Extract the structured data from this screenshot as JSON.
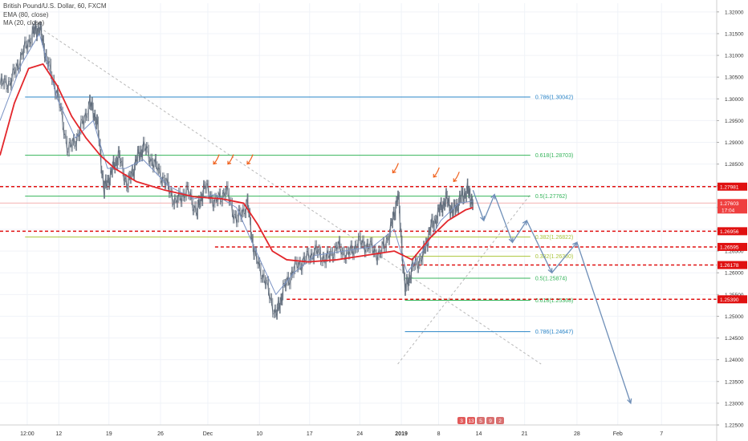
{
  "legend": {
    "symbol": "British Pound/U.S. Dollar, 60, FXCM",
    "ema": "EMA (80, close)",
    "ma": "MA (20, close)"
  },
  "colors": {
    "candle": "#5f6b7a",
    "ema": "#e3262b",
    "ma": "#7b93c4",
    "fib_blue": "#2a84c7",
    "fib_green": "#34b45a",
    "fib_olive": "#a9c43a",
    "level_red": "#e01010",
    "forecast": "#6f8fb8",
    "trendline": "#b8b8b8",
    "annotation_arrow": "#f0611d",
    "price_label_red": "#e01010",
    "current_price_bg": "#ef3f3f"
  },
  "chart_data": {
    "type": "candlestick",
    "instrument": "British Pound/U.S. Dollar",
    "timeframe": "60",
    "source": "FXCM",
    "ylim": [
      1.225,
      1.322
    ],
    "y_ticks": [
      "1.32000",
      "1.31500",
      "1.31000",
      "1.30500",
      "1.30000",
      "1.29500",
      "1.29000",
      "1.28500",
      "1.28000",
      "1.27500",
      "1.27000",
      "1.26500",
      "1.26000",
      "1.25500",
      "1.25000",
      "1.24500",
      "1.24000",
      "1.23500",
      "1.23000",
      "1.22500"
    ],
    "x_ticks": [
      "12:00",
      "12",
      "19",
      "26",
      "Dec",
      "10",
      "17",
      "24",
      "2019",
      "8",
      "14",
      "21",
      "28",
      "Feb",
      "7"
    ],
    "price_path": [
      [
        0.0,
        1.3032
      ],
      [
        0.015,
        1.304
      ],
      [
        0.03,
        1.31
      ],
      [
        0.045,
        1.315
      ],
      [
        0.055,
        1.3165
      ],
      [
        0.065,
        1.309
      ],
      [
        0.08,
        1.301
      ],
      [
        0.095,
        1.288
      ],
      [
        0.11,
        1.292
      ],
      [
        0.125,
        1.299
      ],
      [
        0.135,
        1.295
      ],
      [
        0.145,
        1.279
      ],
      [
        0.155,
        1.283
      ],
      [
        0.165,
        1.287
      ],
      [
        0.178,
        1.28
      ],
      [
        0.19,
        1.286
      ],
      [
        0.2,
        1.289
      ],
      [
        0.215,
        1.285
      ],
      [
        0.23,
        1.281
      ],
      [
        0.245,
        1.276
      ],
      [
        0.26,
        1.279
      ],
      [
        0.275,
        1.274
      ],
      [
        0.285,
        1.28
      ],
      [
        0.3,
        1.276
      ],
      [
        0.315,
        1.279
      ],
      [
        0.33,
        1.272
      ],
      [
        0.345,
        1.276
      ],
      [
        0.355,
        1.264
      ],
      [
        0.37,
        1.258
      ],
      [
        0.385,
        1.25
      ],
      [
        0.395,
        1.256
      ],
      [
        0.41,
        1.261
      ],
      [
        0.425,
        1.263
      ],
      [
        0.44,
        1.265
      ],
      [
        0.455,
        1.263
      ],
      [
        0.47,
        1.266
      ],
      [
        0.485,
        1.264
      ],
      [
        0.5,
        1.267
      ],
      [
        0.515,
        1.266
      ],
      [
        0.53,
        1.264
      ],
      [
        0.545,
        1.27
      ],
      [
        0.555,
        1.278
      ],
      [
        0.565,
        1.256
      ],
      [
        0.575,
        1.261
      ],
      [
        0.59,
        1.264
      ],
      [
        0.6,
        1.27
      ],
      [
        0.612,
        1.274
      ],
      [
        0.622,
        1.277
      ],
      [
        0.632,
        1.274
      ],
      [
        0.642,
        1.277
      ],
      [
        0.652,
        1.279
      ],
      [
        0.66,
        1.276
      ]
    ],
    "ema_80": [
      [
        0.0,
        1.287
      ],
      [
        0.02,
        1.299
      ],
      [
        0.04,
        1.307
      ],
      [
        0.06,
        1.308
      ],
      [
        0.08,
        1.303
      ],
      [
        0.1,
        1.296
      ],
      [
        0.12,
        1.291
      ],
      [
        0.14,
        1.287
      ],
      [
        0.16,
        1.284
      ],
      [
        0.19,
        1.281
      ],
      [
        0.23,
        1.279
      ],
      [
        0.27,
        1.2775
      ],
      [
        0.31,
        1.277
      ],
      [
        0.34,
        1.276
      ],
      [
        0.36,
        1.271
      ],
      [
        0.38,
        1.265
      ],
      [
        0.4,
        1.263
      ],
      [
        0.43,
        1.2625
      ],
      [
        0.47,
        1.263
      ],
      [
        0.51,
        1.264
      ],
      [
        0.55,
        1.265
      ],
      [
        0.575,
        1.263
      ],
      [
        0.6,
        1.268
      ],
      [
        0.625,
        1.272
      ],
      [
        0.65,
        1.2745
      ],
      [
        0.66,
        1.275
      ]
    ],
    "ma_20": [
      [
        0.0,
        1.295
      ],
      [
        0.03,
        1.308
      ],
      [
        0.055,
        1.315
      ],
      [
        0.08,
        1.3
      ],
      [
        0.105,
        1.291
      ],
      [
        0.13,
        1.295
      ],
      [
        0.15,
        1.284
      ],
      [
        0.175,
        1.284
      ],
      [
        0.2,
        1.286
      ],
      [
        0.235,
        1.28
      ],
      [
        0.27,
        1.277
      ],
      [
        0.3,
        1.278
      ],
      [
        0.33,
        1.275
      ],
      [
        0.36,
        1.264
      ],
      [
        0.385,
        1.255
      ],
      [
        0.41,
        1.26
      ],
      [
        0.44,
        1.264
      ],
      [
        0.48,
        1.265
      ],
      [
        0.52,
        1.266
      ],
      [
        0.55,
        1.27
      ],
      [
        0.568,
        1.26
      ],
      [
        0.59,
        1.265
      ],
      [
        0.615,
        1.272
      ],
      [
        0.64,
        1.276
      ],
      [
        0.66,
        1.2765
      ]
    ],
    "horizontal_levels": [
      {
        "price": 1.27981,
        "label": "1.27981",
        "style": "red-dashed",
        "x_start": 0.0
      },
      {
        "price": 1.26956,
        "label": "1.26956",
        "style": "red-dashed",
        "x_start": 0.0
      },
      {
        "price": 1.26595,
        "label": "1.26595",
        "style": "red-dashed",
        "x_start": 0.3
      },
      {
        "price": 1.26178,
        "label": "1.26178",
        "style": "red-dashed",
        "x_start": 0.56
      },
      {
        "price": 1.2539,
        "label": "1.25390",
        "style": "red-dashed",
        "x_start": 0.4
      }
    ],
    "fib_levels": [
      {
        "ratio": "0.786",
        "price": 1.30042,
        "text": "0.786(1.30042)",
        "color": "blue",
        "x_start": 0.035,
        "x_end": 0.74
      },
      {
        "ratio": "0.618",
        "price": 1.28703,
        "text": "0.618(1.28703)",
        "color": "green",
        "x_start": 0.035,
        "x_end": 0.74
      },
      {
        "ratio": "0.5",
        "price": 1.27762,
        "text": "0.5(1.27762)",
        "color": "green",
        "x_start": 0.035,
        "x_end": 0.74
      },
      {
        "ratio": "0.382",
        "price": 1.26822,
        "text": "0.382(1.26822)",
        "color": "olive",
        "x_start": 0.035,
        "x_end": 0.74
      },
      {
        "ratio": "0.382",
        "price": 1.2638,
        "text": "0.382(1.26380)",
        "color": "olive",
        "x_start": 0.565,
        "x_end": 0.74
      },
      {
        "ratio": "0.5",
        "price": 1.25874,
        "text": "0.5(1.25874)",
        "color": "green",
        "x_start": 0.565,
        "x_end": 0.74
      },
      {
        "ratio": "0.618",
        "price": 1.25368,
        "text": "0.618(1.25368)",
        "color": "green",
        "x_start": 0.565,
        "x_end": 0.74
      },
      {
        "ratio": "0.786",
        "price": 1.24647,
        "text": "0.786(1.24647)",
        "color": "blue",
        "x_start": 0.565,
        "x_end": 0.74
      }
    ],
    "current_price": {
      "label": "1.27603",
      "price": 1.27603,
      "countdown": "17:04"
    },
    "trendlines": [
      {
        "from": [
          0.05,
          1.317
        ],
        "to": [
          0.755,
          1.239
        ]
      },
      {
        "from": [
          0.555,
          1.239
        ],
        "to": [
          0.74,
          1.278
        ]
      }
    ],
    "forecast_path": [
      [
        0.66,
        1.279
      ],
      [
        0.675,
        1.272
      ],
      [
        0.69,
        1.278
      ],
      [
        0.715,
        1.267
      ],
      [
        0.735,
        1.272
      ],
      [
        0.77,
        1.26
      ],
      [
        0.805,
        1.267
      ],
      [
        0.88,
        1.23
      ]
    ],
    "annotation_arrows": [
      [
        0.298,
        1.285
      ],
      [
        0.318,
        1.285
      ],
      [
        0.345,
        1.285
      ],
      [
        0.548,
        1.283
      ],
      [
        0.605,
        1.282
      ],
      [
        0.633,
        1.281
      ]
    ],
    "event_markers": [
      "3",
      "13",
      "5",
      "9",
      "2"
    ]
  }
}
